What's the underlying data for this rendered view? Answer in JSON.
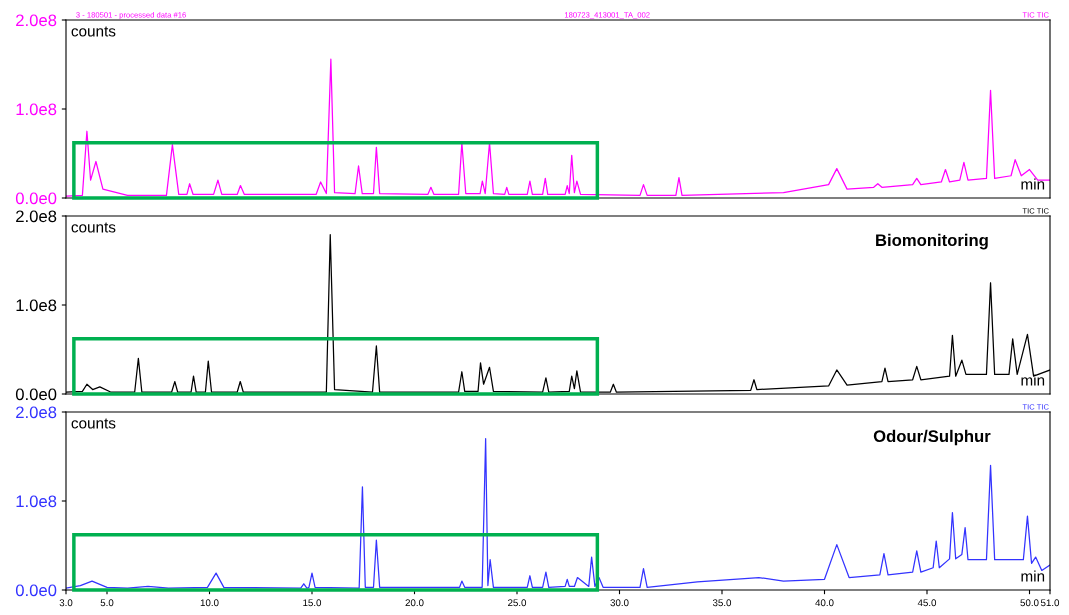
{
  "chart_data": [
    {
      "type": "line",
      "ylabel": "counts",
      "xlabel": "min",
      "tick_labels": "y",
      "legend": false,
      "grid": false,
      "annotations": [
        "3 - 180501 - processed data #16",
        "180723_413001_TA_002",
        "TIC TIC"
      ],
      "xlim": [
        3.0,
        51.0
      ],
      "ylim": [
        0,
        200000000
      ],
      "yticks": [
        {
          "value": 0,
          "label": "0.0e0"
        },
        {
          "value": 100000000,
          "label": "1.0e8"
        },
        {
          "value": 200000000,
          "label": "2.0e8"
        }
      ],
      "series": [
        {
          "color": "#ff00ff",
          "x": [
            3.0,
            3.8,
            4.02,
            4.2,
            4.46,
            4.8,
            6.0,
            7.9,
            8.19,
            8.5,
            8.9,
            9.03,
            9.2,
            10.2,
            10.41,
            10.6,
            11.35,
            11.51,
            11.7,
            15.2,
            15.42,
            15.7,
            15.92,
            16.1,
            17.1,
            17.27,
            17.45,
            18.0,
            18.14,
            18.3,
            20.65,
            20.8,
            20.95,
            22.15,
            22.31,
            22.5,
            23.2,
            23.31,
            23.45,
            23.66,
            23.85,
            24.4,
            24.5,
            24.6,
            25.5,
            25.63,
            25.75,
            26.25,
            26.38,
            26.5,
            27.35,
            27.45,
            27.55,
            27.67,
            27.8,
            27.92,
            28.1,
            31.0,
            31.17,
            31.35,
            32.75,
            32.9,
            33.05,
            38.0,
            40.2,
            40.6,
            41.1,
            42.4,
            42.6,
            42.8,
            44.3,
            44.5,
            44.7,
            45.7,
            45.9,
            46.1,
            46.6,
            46.8,
            47.0,
            47.9,
            48.1,
            48.3,
            49.1,
            49.3,
            49.6,
            50.0,
            50.4,
            51.0
          ],
          "values": [
            2000000,
            3000000,
            75000000,
            20000000,
            41000000,
            10000000,
            3000000,
            3000000,
            60000000,
            4000000,
            4000000,
            16000000,
            4000000,
            4000000,
            20000000,
            4000000,
            4000000,
            14000000,
            4000000,
            4000000,
            18000000,
            5000000,
            156000000,
            6000000,
            5000000,
            36000000,
            5000000,
            5000000,
            57000000,
            5000000,
            4000000,
            12000000,
            4000000,
            4000000,
            62000000,
            5000000,
            5000000,
            19000000,
            5000000,
            62000000,
            5000000,
            4000000,
            12000000,
            4000000,
            4000000,
            19000000,
            4000000,
            4000000,
            22000000,
            4000000,
            4000000,
            14000000,
            5000000,
            48000000,
            6000000,
            19000000,
            4000000,
            3000000,
            15000000,
            3000000,
            3000000,
            23000000,
            3000000,
            6000000,
            15000000,
            33000000,
            10000000,
            12000000,
            16000000,
            12000000,
            15000000,
            22000000,
            15000000,
            18000000,
            32000000,
            18000000,
            20000000,
            40000000,
            20000000,
            22000000,
            121000000,
            22000000,
            25000000,
            43000000,
            25000000,
            32000000,
            20000000,
            20000000
          ]
        }
      ]
    },
    {
      "type": "line",
      "title": "Biomonitoring",
      "ylabel": "counts",
      "xlabel": "min",
      "tick_labels": "y",
      "legend": false,
      "grid": false,
      "annotations": [
        "TIC TIC"
      ],
      "xlim": [
        3.0,
        51.0
      ],
      "ylim": [
        0,
        200000000
      ],
      "yticks": [
        {
          "value": 0,
          "label": "0.0e0"
        },
        {
          "value": 100000000,
          "label": "1.0e8"
        },
        {
          "value": 200000000,
          "label": "2.0e8"
        }
      ],
      "series": [
        {
          "color": "#000000",
          "x": [
            3.0,
            3.8,
            4.02,
            4.3,
            4.65,
            5.2,
            6.35,
            6.53,
            6.7,
            8.15,
            8.31,
            8.45,
            9.1,
            9.22,
            9.35,
            9.8,
            9.94,
            10.1,
            11.35,
            11.5,
            11.65,
            15.7,
            15.89,
            16.1,
            17.95,
            18.14,
            18.3,
            22.15,
            22.31,
            22.45,
            23.1,
            23.22,
            23.37,
            23.66,
            23.85,
            26.25,
            26.41,
            26.55,
            27.55,
            27.67,
            27.8,
            27.92,
            28.1,
            29.55,
            29.7,
            29.85,
            36.4,
            36.56,
            36.7,
            40.2,
            40.6,
            41.1,
            42.8,
            42.95,
            43.1,
            44.3,
            44.5,
            44.7,
            46.1,
            46.24,
            46.4,
            46.7,
            46.9,
            47.9,
            48.1,
            48.3,
            49.0,
            49.18,
            49.4,
            49.9,
            50.2,
            51.0
          ],
          "values": [
            2000000,
            3000000,
            11000000,
            5000000,
            8000000,
            2000000,
            2000000,
            40000000,
            2000000,
            2000000,
            14000000,
            2000000,
            2000000,
            20000000,
            2000000,
            2000000,
            37000000,
            2000000,
            2000000,
            14000000,
            2000000,
            2000000,
            179000000,
            5000000,
            2000000,
            54000000,
            2000000,
            2000000,
            25000000,
            3000000,
            3000000,
            35000000,
            11000000,
            30000000,
            3000000,
            2000000,
            18000000,
            2000000,
            3000000,
            20000000,
            6000000,
            26000000,
            2000000,
            2000000,
            11000000,
            2000000,
            4000000,
            16000000,
            5000000,
            9000000,
            27000000,
            10000000,
            14000000,
            29000000,
            14000000,
            16000000,
            31000000,
            16000000,
            20000000,
            66000000,
            20000000,
            38000000,
            22000000,
            22000000,
            125000000,
            22000000,
            22000000,
            62000000,
            22000000,
            67000000,
            20000000,
            27000000
          ]
        }
      ]
    },
    {
      "type": "line",
      "title": "Odour/Sulphur",
      "ylabel": "counts",
      "xlabel": "min",
      "legend": false,
      "grid": false,
      "annotations": [
        "TIC TIC"
      ],
      "xlim": [
        3.0,
        51.0
      ],
      "ylim": [
        0,
        200000000
      ],
      "xticks": [
        {
          "value": 3.0,
          "label": "3.0"
        },
        {
          "value": 5.0,
          "label": "5.0"
        },
        {
          "value": 10.0,
          "label": "10.0"
        },
        {
          "value": 15.0,
          "label": "15.0"
        },
        {
          "value": 20.0,
          "label": "20.0"
        },
        {
          "value": 25.0,
          "label": "25.0"
        },
        {
          "value": 30.0,
          "label": "30.0"
        },
        {
          "value": 35.0,
          "label": "35.0"
        },
        {
          "value": 40.0,
          "label": "40.0"
        },
        {
          "value": 45.0,
          "label": "45.0"
        },
        {
          "value": 50.0,
          "label": "50.0"
        },
        {
          "value": 51.0,
          "label": "51.0"
        }
      ],
      "yticks": [
        {
          "value": 0,
          "label": "0.0e0"
        },
        {
          "value": 100000000,
          "label": "1.0e8"
        },
        {
          "value": 200000000,
          "label": "2.0e8"
        }
      ],
      "series": [
        {
          "color": "#3333ff",
          "x": [
            3.0,
            3.7,
            4.27,
            5.0,
            6.0,
            7.0,
            8.0,
            9.9,
            10.32,
            10.7,
            14.45,
            14.6,
            14.75,
            14.85,
            15.0,
            15.15,
            17.3,
            17.46,
            17.6,
            18.0,
            18.14,
            18.3,
            22.2,
            22.31,
            22.45,
            23.3,
            23.47,
            23.58,
            23.69,
            23.85,
            25.5,
            25.63,
            25.75,
            26.25,
            26.41,
            26.55,
            27.35,
            27.45,
            27.55,
            27.8,
            27.95,
            28.5,
            28.64,
            28.8,
            29.0,
            29.2,
            31.0,
            31.17,
            31.35,
            33.8,
            36.8,
            38.0,
            40.0,
            40.6,
            41.2,
            42.7,
            42.9,
            43.1,
            44.3,
            44.5,
            44.7,
            45.3,
            45.45,
            45.6,
            46.1,
            46.24,
            46.4,
            46.7,
            46.86,
            47.0,
            47.9,
            48.1,
            48.3,
            49.7,
            49.9,
            50.1,
            50.3,
            50.6,
            51.0
          ],
          "values": [
            2000000,
            5000000,
            10000000,
            3000000,
            2000000,
            4000000,
            2000000,
            3000000,
            19000000,
            3000000,
            2000000,
            7000000,
            2000000,
            3000000,
            19000000,
            3000000,
            2000000,
            116000000,
            3000000,
            3000000,
            56000000,
            3000000,
            3000000,
            10000000,
            3000000,
            3000000,
            170000000,
            5000000,
            34000000,
            3000000,
            3000000,
            16000000,
            3000000,
            3000000,
            20000000,
            3000000,
            4000000,
            12000000,
            4000000,
            4000000,
            14000000,
            4000000,
            37000000,
            4000000,
            14000000,
            3000000,
            3000000,
            24000000,
            3000000,
            9000000,
            14000000,
            10000000,
            12000000,
            51000000,
            14000000,
            17000000,
            41000000,
            17000000,
            20000000,
            44000000,
            20000000,
            25000000,
            55000000,
            25000000,
            35000000,
            87000000,
            35000000,
            40000000,
            70000000,
            34000000,
            34000000,
            140000000,
            34000000,
            34000000,
            83000000,
            30000000,
            37000000,
            22000000,
            28000000
          ]
        }
      ]
    }
  ]
}
